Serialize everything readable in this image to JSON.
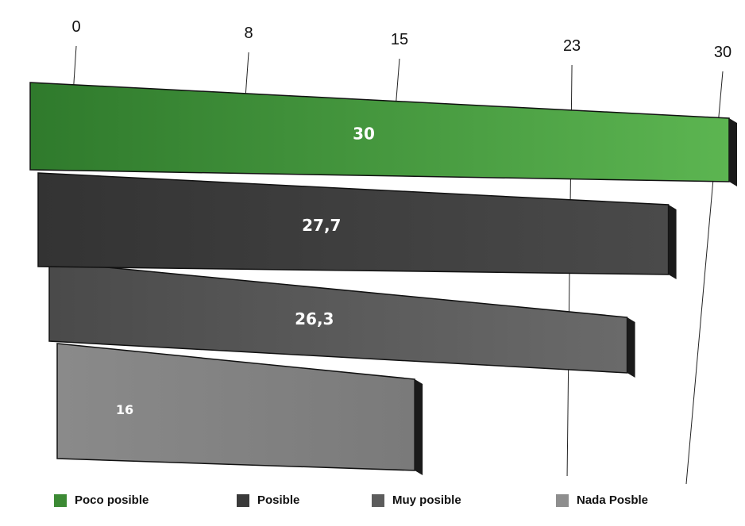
{
  "chart_data": {
    "type": "bar",
    "orientation": "horizontal",
    "axis_ticks": [
      "0",
      "8",
      "15",
      "23",
      "30"
    ],
    "xlim": [
      0,
      30
    ],
    "categories": [
      "Poco posible",
      "Posible",
      "Muy posible",
      "Nada Posble"
    ],
    "values": [
      30,
      27.7,
      26.3,
      16
    ],
    "value_labels": [
      "30",
      "27,7",
      "26,3",
      "16"
    ],
    "colors": [
      "#4a9a3f",
      "#3a3a3a",
      "#5a5a5a",
      "#8a8a8a"
    ],
    "legend": [
      {
        "label": "Poco posible",
        "color": "#3c8a34"
      },
      {
        "label": "Posible",
        "color": "#3a3a3a"
      },
      {
        "label": "Muy posible",
        "color": "#5c5c5c"
      },
      {
        "label": "Nada Posble",
        "color": "#8e8e8e"
      }
    ],
    "legend_position": "bottom",
    "grid": true
  }
}
